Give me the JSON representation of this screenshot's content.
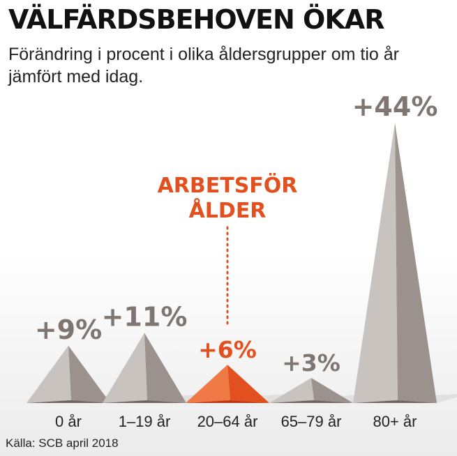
{
  "header": {
    "title": "VÄLFÄRDSBEHOVEN ÖKAR",
    "subtitle": "Förändring i procent i olika åldersgrupper om tio år jämfört med idag."
  },
  "source": "Källa: SCB april 2018",
  "colors": {
    "peak_light": "#c9c3bf",
    "peak_mid": "#9c928d",
    "peak_dark": "#6e6561",
    "highlight_light": "#f07a45",
    "highlight_mid": "#e2501f",
    "highlight_dark": "#b9380f",
    "value_label": "#7f7672",
    "highlight_label": "#e2501f"
  },
  "chart_data": {
    "type": "bar",
    "categories": [
      "0 år",
      "1–19 år",
      "20–64 år",
      "65–79 år",
      "80+ år"
    ],
    "values": [
      9,
      11,
      6,
      3,
      44
    ],
    "value_labels": [
      "+9%",
      "+11%",
      "+6%",
      "+3%",
      "+44%"
    ],
    "highlight_index": 2,
    "annotation": [
      "ARBETSFÖR",
      "ÅLDER"
    ],
    "title": "VÄLFÄRDSBEHOVEN ÖKAR",
    "subtitle": "Förändring i procent i olika åldersgrupper om tio år jämfört med idag.",
    "ylim": [
      0,
      44
    ]
  }
}
